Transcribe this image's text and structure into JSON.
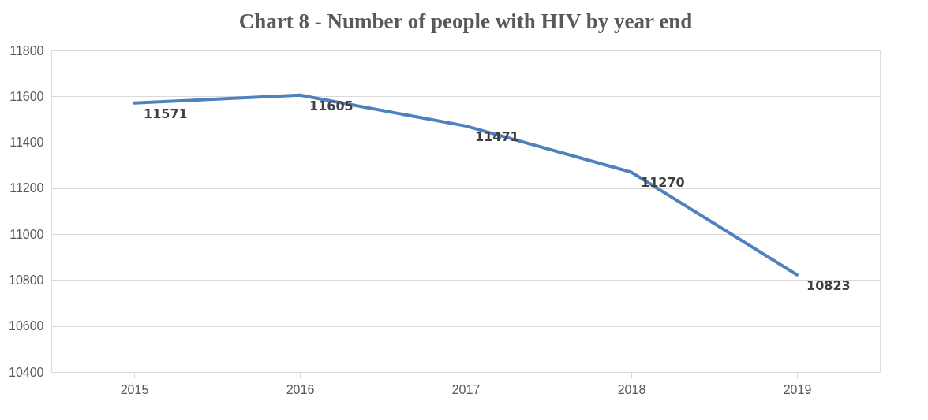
{
  "chart_data": {
    "type": "line",
    "title": "Chart 8 - Number of people with HIV by year end",
    "categories": [
      "2015",
      "2016",
      "2017",
      "2018",
      "2019"
    ],
    "series": [
      {
        "color": "#4f81bd",
        "values": [
          11571,
          11605,
          11471,
          11270,
          10823
        ]
      }
    ],
    "ylim": [
      10400,
      11800
    ],
    "yticks": [
      10400,
      10600,
      10800,
      11000,
      11200,
      11400,
      11600,
      11800
    ],
    "grid": "y",
    "data_labels": true,
    "legend": false,
    "marker": "none",
    "line_style": "solid"
  }
}
